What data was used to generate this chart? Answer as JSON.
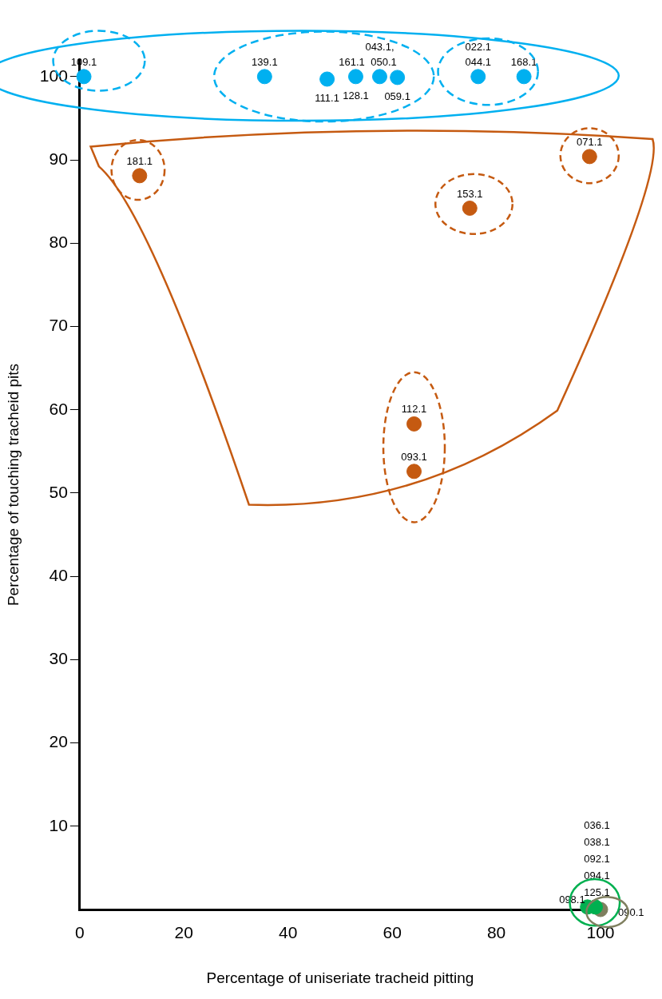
{
  "chart_data": {
    "type": "scatter",
    "xlabel": "Percentage of uniseriate tracheid pitting",
    "ylabel": "Percentage of touching tracheid pits",
    "xlim": [
      0,
      100
    ],
    "ylim": [
      0,
      102
    ],
    "xticks": [
      0,
      20,
      40,
      60,
      80,
      100
    ],
    "yticks": [
      10,
      20,
      30,
      40,
      50,
      60,
      70,
      80,
      90,
      100
    ],
    "grid": false,
    "legend": false,
    "marker": "circle",
    "series": [
      {
        "color": "#00b0f0",
        "x": [
          0.8,
          35.5,
          47.5,
          53,
          57.6,
          61,
          76.5,
          85.3
        ],
        "values": [
          100,
          100,
          99.7,
          100,
          100,
          99.9,
          100,
          100
        ]
      },
      {
        "color": "#c55a11",
        "x": [
          11.5,
          74.9,
          97.9,
          64.2,
          64.2
        ],
        "values": [
          88.1,
          84.2,
          90.4,
          58.3,
          52.6
        ]
      },
      {
        "color": "#00b050",
        "x": [
          97.5,
          99
        ],
        "values": [
          0.3,
          0.3
        ]
      },
      {
        "color": "#7f7f5f",
        "x": [
          100
        ],
        "values": [
          0
        ]
      }
    ],
    "annotations": [
      {
        "text": "109.1",
        "x": 0.8,
        "y": 100
      },
      {
        "text": "139.1",
        "x": 35.5,
        "y": 100
      },
      {
        "text": "111.1",
        "x": 47.5,
        "y": 99.7
      },
      {
        "text": "161.1",
        "x": 53,
        "y": 100
      },
      {
        "text": "128.1",
        "x": 53,
        "y": 100
      },
      {
        "text": "043.1,",
        "x": 57.6,
        "y": 100
      },
      {
        "text": "050.1",
        "x": 57.6,
        "y": 100
      },
      {
        "text": "059.1",
        "x": 61,
        "y": 99.9
      },
      {
        "text": "022.1",
        "x": 76.5,
        "y": 100
      },
      {
        "text": "044.1",
        "x": 76.5,
        "y": 100
      },
      {
        "text": "168.1",
        "x": 85.3,
        "y": 100
      },
      {
        "text": "181.1",
        "x": 11.5,
        "y": 88.1
      },
      {
        "text": "153.1",
        "x": 74.9,
        "y": 84.2
      },
      {
        "text": "071.1",
        "x": 97.9,
        "y": 90.4
      },
      {
        "text": "112.1",
        "x": 64.2,
        "y": 58.3
      },
      {
        "text": "093.1",
        "x": 64.2,
        "y": 52.6
      },
      "036.1",
      "038.1",
      "092.1",
      "094.1",
      "125.1",
      {
        "text": "098.1",
        "x": 97.5,
        "y": 0.3
      },
      {
        "text": "090.1",
        "x": 100,
        "y": 0
      }
    ]
  }
}
